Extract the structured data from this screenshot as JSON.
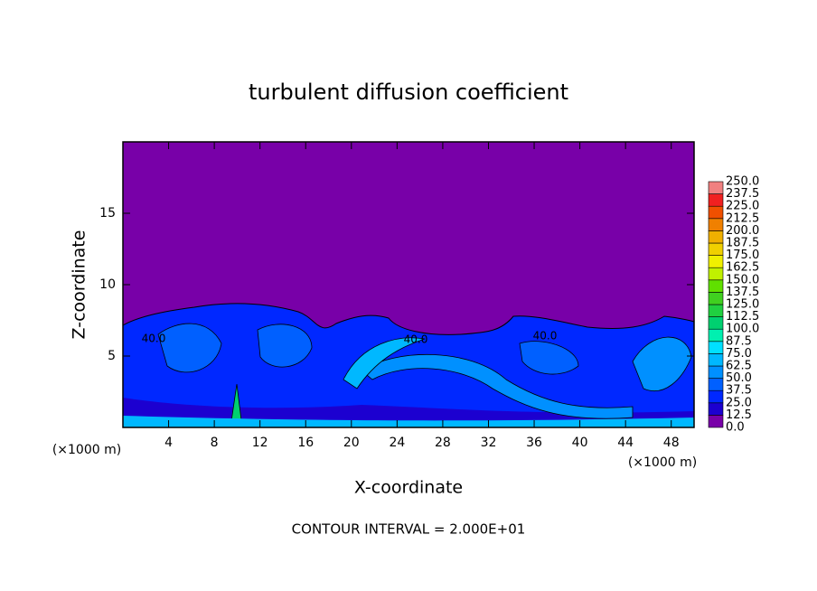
{
  "chart_data": {
    "type": "contour",
    "title": "turbulent diffusion coefficient",
    "x_label": "X-coordinate",
    "y_label": "Z-coordinate",
    "x_unit_label": "(×1000 m)",
    "y_unit_label": "(×1000 m)",
    "footer": "CONTOUR INTERVAL = 2.000E+01",
    "contour_labels": [
      "40.0",
      "40.0",
      "40.0"
    ],
    "xlim": [
      0,
      50
    ],
    "xticks": [
      4,
      8,
      12,
      16,
      20,
      24,
      28,
      32,
      36,
      40,
      44,
      48
    ],
    "ylim": [
      0,
      20
    ],
    "yticks": [
      5,
      10,
      15
    ],
    "colorbar": {
      "levels": [
        {
          "value": 0,
          "label": "0.0"
        },
        12.5,
        {
          "value": 25,
          "label": "25.0"
        },
        37.5,
        {
          "value": 50,
          "label": "50.0"
        },
        62.5,
        {
          "value": 75,
          "label": "75.0"
        },
        87.5,
        {
          "value": 100,
          "label": "100.0"
        },
        112.5,
        {
          "value": 125,
          "label": "125.0"
        },
        137.5,
        {
          "value": 150,
          "label": "150.0"
        },
        162.5,
        {
          "value": 175,
          "label": "175.0"
        },
        187.5,
        {
          "value": 200,
          "label": "200.0"
        },
        212.5,
        {
          "value": 225,
          "label": "225.0"
        },
        237.5,
        {
          "value": 250,
          "label": "250.0"
        }
      ],
      "colors": [
        "#7800a8",
        "#1c00d0",
        "#0028ff",
        "#0060ff",
        "#0090ff",
        "#00b8ff",
        "#00e0ff",
        "#00f0b0",
        "#00d070",
        "#20d040",
        "#40d020",
        "#60e000",
        "#c0f000",
        "#f0f000",
        "#f0d000",
        "#f0b000",
        "#f08000",
        "#f05000",
        "#f02020",
        "#f08080"
      ]
    }
  }
}
